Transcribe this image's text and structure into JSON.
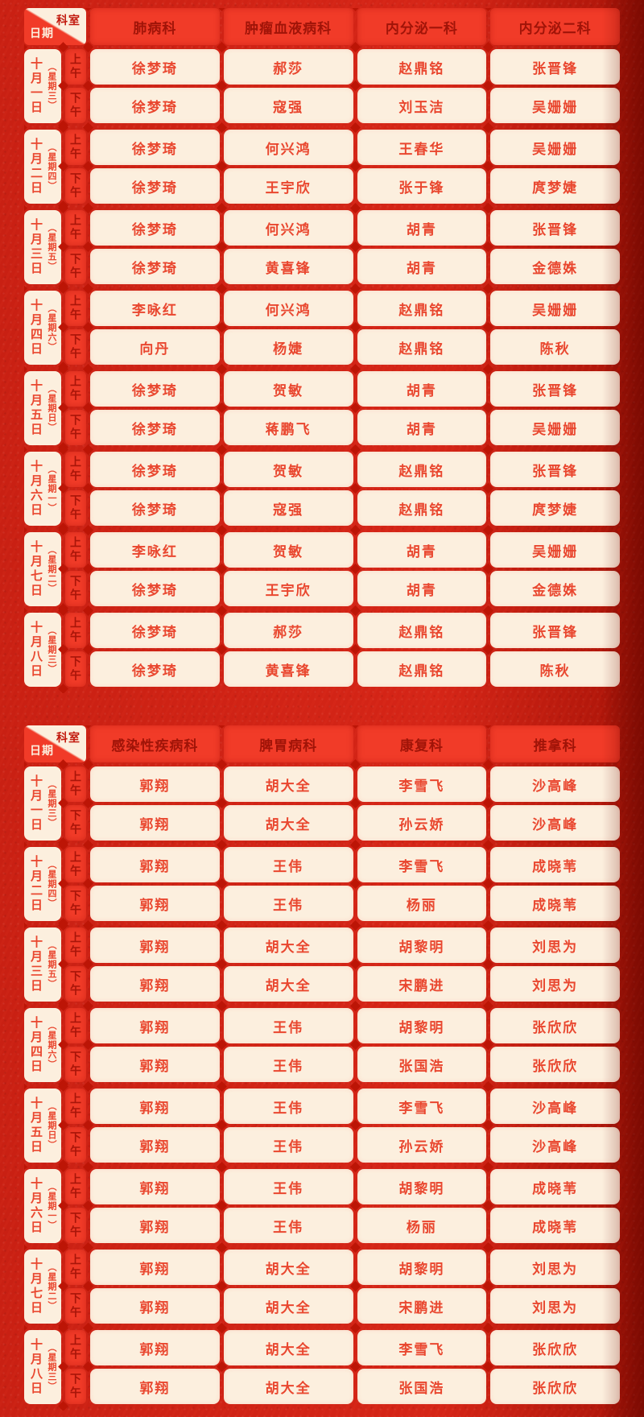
{
  "corner": {
    "top": "科室",
    "bottom": "日期"
  },
  "labels": {
    "am": "上午",
    "pm": "下午"
  },
  "table1": {
    "columns": [
      "肺病科",
      "肿瘤血液病科",
      "内分泌一科",
      "内分泌二科"
    ],
    "days": [
      {
        "date": "十月一日",
        "week": "（星期三）",
        "am": [
          "徐梦琦",
          "郝莎",
          "赵鼎铭",
          "张晋锋"
        ],
        "pm": [
          "徐梦琦",
          "寇强",
          "刘玉洁",
          "吴姗姗"
        ]
      },
      {
        "date": "十月二日",
        "week": "（星期四）",
        "am": [
          "徐梦琦",
          "何兴鸿",
          "王春华",
          "吴姗姗"
        ],
        "pm": [
          "徐梦琦",
          "王宇欣",
          "张于锋",
          "庹梦婕"
        ]
      },
      {
        "date": "十月三日",
        "week": "（星期五）",
        "am": [
          "徐梦琦",
          "何兴鸿",
          "胡青",
          "张晋锋"
        ],
        "pm": [
          "徐梦琦",
          "黄喜锋",
          "胡青",
          "金德姝"
        ]
      },
      {
        "date": "十月四日",
        "week": "（星期六）",
        "am": [
          "李咏红",
          "何兴鸿",
          "赵鼎铭",
          "吴姗姗"
        ],
        "pm": [
          "向丹",
          "杨婕",
          "赵鼎铭",
          "陈秋"
        ]
      },
      {
        "date": "十月五日",
        "week": "（星期日）",
        "am": [
          "徐梦琦",
          "贺敏",
          "胡青",
          "张晋锋"
        ],
        "pm": [
          "徐梦琦",
          "蒋鹏飞",
          "胡青",
          "吴姗姗"
        ]
      },
      {
        "date": "十月六日",
        "week": "（星期一）",
        "am": [
          "徐梦琦",
          "贺敏",
          "赵鼎铭",
          "张晋锋"
        ],
        "pm": [
          "徐梦琦",
          "寇强",
          "赵鼎铭",
          "庹梦婕"
        ]
      },
      {
        "date": "十月七日",
        "week": "（星期二）",
        "am": [
          "李咏红",
          "贺敏",
          "胡青",
          "吴姗姗"
        ],
        "pm": [
          "徐梦琦",
          "王宇欣",
          "胡青",
          "金德姝"
        ]
      },
      {
        "date": "十月八日",
        "week": "（星期三）",
        "am": [
          "徐梦琦",
          "郝莎",
          "赵鼎铭",
          "张晋锋"
        ],
        "pm": [
          "徐梦琦",
          "黄喜锋",
          "赵鼎铭",
          "陈秋"
        ]
      }
    ]
  },
  "table2": {
    "columns": [
      "感染性疾病科",
      "脾胃病科",
      "康复科",
      "推拿科"
    ],
    "days": [
      {
        "date": "十月一日",
        "week": "（星期三）",
        "am": [
          "郭翔",
          "胡大全",
          "李雪飞",
          "沙高峰"
        ],
        "pm": [
          "郭翔",
          "胡大全",
          "孙云娇",
          "沙高峰"
        ]
      },
      {
        "date": "十月二日",
        "week": "（星期四）",
        "am": [
          "郭翔",
          "王伟",
          "李雪飞",
          "成晓苇"
        ],
        "pm": [
          "郭翔",
          "王伟",
          "杨丽",
          "成晓苇"
        ]
      },
      {
        "date": "十月三日",
        "week": "（星期五）",
        "am": [
          "郭翔",
          "胡大全",
          "胡黎明",
          "刘思为"
        ],
        "pm": [
          "郭翔",
          "胡大全",
          "宋鹏进",
          "刘思为"
        ]
      },
      {
        "date": "十月四日",
        "week": "（星期六）",
        "am": [
          "郭翔",
          "王伟",
          "胡黎明",
          "张欣欣"
        ],
        "pm": [
          "郭翔",
          "王伟",
          "张国浩",
          "张欣欣"
        ]
      },
      {
        "date": "十月五日",
        "week": "（星期日）",
        "am": [
          "郭翔",
          "王伟",
          "李雪飞",
          "沙高峰"
        ],
        "pm": [
          "郭翔",
          "王伟",
          "孙云娇",
          "沙高峰"
        ]
      },
      {
        "date": "十月六日",
        "week": "（星期一）",
        "am": [
          "郭翔",
          "王伟",
          "胡黎明",
          "成晓苇"
        ],
        "pm": [
          "郭翔",
          "王伟",
          "杨丽",
          "成晓苇"
        ]
      },
      {
        "date": "十月七日",
        "week": "（星期二）",
        "am": [
          "郭翔",
          "胡大全",
          "胡黎明",
          "刘思为"
        ],
        "pm": [
          "郭翔",
          "胡大全",
          "宋鹏进",
          "刘思为"
        ]
      },
      {
        "date": "十月八日",
        "week": "（星期三）",
        "am": [
          "郭翔",
          "胡大全",
          "李雪飞",
          "张欣欣"
        ],
        "pm": [
          "郭翔",
          "胡大全",
          "张国浩",
          "张欣欣"
        ]
      }
    ]
  }
}
